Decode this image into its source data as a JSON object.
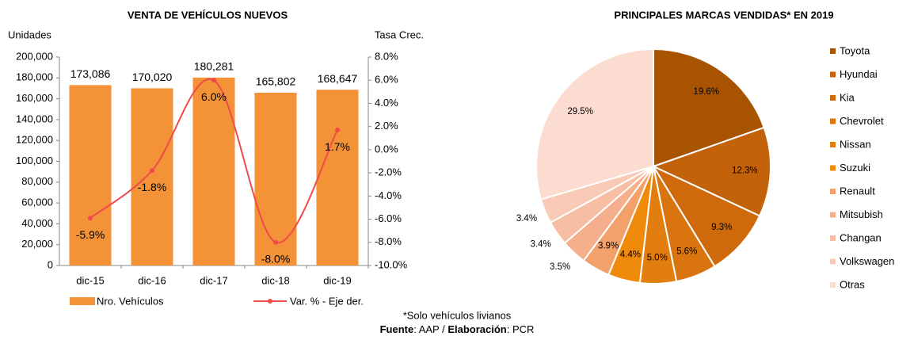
{
  "chart_data": [
    {
      "type": "combo",
      "title": "VENTA DE VEHÍCULOS NUEVOS",
      "ylabel": "Unidades",
      "y2label": "Tasa Crec.",
      "categories": [
        "dic-15",
        "dic-16",
        "dic-17",
        "dic-18",
        "dic-19"
      ],
      "series": [
        {
          "name": "Nro. Vehículos",
          "type": "bar",
          "color": "#f39237",
          "values": [
            173086,
            170020,
            180281,
            165802,
            168647
          ],
          "value_labels": [
            "173,086",
            "170,020",
            "180,281",
            "165,802",
            "168,647"
          ]
        },
        {
          "name": "Var. % - Eje der.",
          "type": "line",
          "axis": "y2",
          "color": "#f04a4a",
          "values": [
            -5.9,
            -1.8,
            6.0,
            -8.0,
            1.7
          ],
          "value_labels": [
            "-5.9%",
            "-1.8%",
            "6.0%",
            "-8.0%",
            "1.7%"
          ]
        }
      ],
      "ylim": [
        0,
        200000
      ],
      "yticks": [
        0,
        {
          "value": 20000,
          "label": "20,000"
        },
        {
          "value": 40000,
          "label": "40,000"
        },
        {
          "value": 60000,
          "label": "60,000"
        },
        {
          "value": 80000,
          "label": "80,000"
        },
        {
          "value": 100000,
          "label": "100,000"
        },
        {
          "value": 120000,
          "label": "120,000"
        },
        {
          "value": 140000,
          "label": "140,000"
        },
        {
          "value": 160000,
          "label": "160,000"
        },
        {
          "value": 180000,
          "label": "180,000"
        },
        {
          "value": 200000,
          "label": "200,000"
        }
      ],
      "y2lim": [
        -10,
        8
      ],
      "y2ticks": [
        {
          "value": -10,
          "label": "-10.0%"
        },
        {
          "value": -8,
          "label": "-8.0%"
        },
        {
          "value": -6,
          "label": "-6.0%"
        },
        {
          "value": -4,
          "label": "-4.0%"
        },
        {
          "value": -2,
          "label": "-2.0%"
        },
        {
          "value": 0,
          "label": "0.0%"
        },
        {
          "value": 2,
          "label": "2.0%"
        },
        {
          "value": 4,
          "label": "4.0%"
        },
        {
          "value": 6,
          "label": "6.0%"
        },
        {
          "value": 8,
          "label": "8.0%"
        }
      ],
      "legend": "bottom"
    },
    {
      "type": "pie",
      "title": "PRINCIPALES MARCAS VENDIDAS* EN 2019",
      "categories": [
        "Toyota",
        "Hyundai",
        "Kia",
        "Chevrolet",
        "Nissan",
        "Suzuki",
        "Renault",
        "Mitsubish",
        "Changan",
        "Volkswagen",
        "Otras"
      ],
      "values": [
        19.6,
        12.3,
        9.3,
        5.6,
        5.0,
        4.4,
        3.9,
        3.5,
        3.4,
        3.4,
        29.5
      ],
      "value_labels": [
        "19.6%",
        "12.3%",
        "9.3%",
        "5.6%",
        "5.0%",
        "4.4%",
        "3.9%",
        "3.5%",
        "3.4%",
        "3.4%",
        "29.5%"
      ],
      "colors": [
        "#a85300",
        "#c2620a",
        "#cf6a0c",
        "#d9740f",
        "#e27d10",
        "#f08a0a",
        "#f3a06a",
        "#f5af8c",
        "#f7bea3",
        "#f9cbb6",
        "#fcdcd0"
      ],
      "legend": "right"
    }
  ],
  "footnote": "*Solo vehículos livianos",
  "source": [
    "Fuente",
    ": AAP / ",
    "Elaboración",
    ": PCR"
  ]
}
